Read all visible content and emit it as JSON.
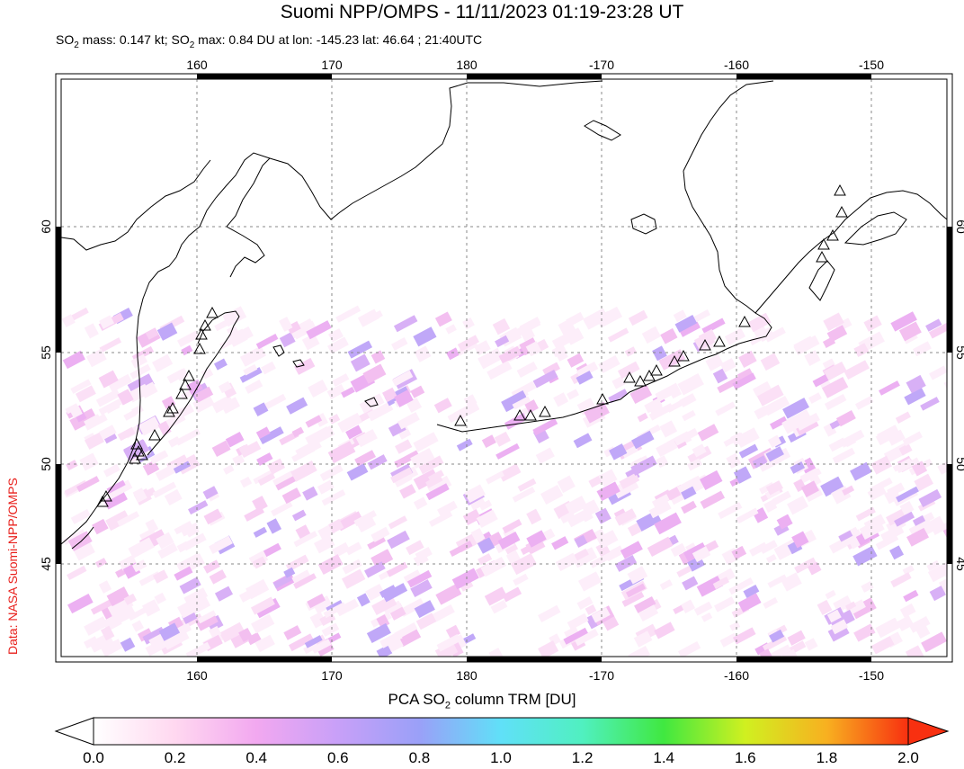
{
  "header": {
    "title": "Suomi NPP/OMPS - 11/11/2023 01:19-23:28 UT",
    "subtitle_a": "SO",
    "subtitle_b": " mass: 0.147 kt; SO",
    "subtitle_c": " max: 0.84 DU at lon: -145.23 lat: 46.64 ; 21:40UTC",
    "sub2": "2"
  },
  "credit": "Data: NASA Suomi-NPP/OMPS",
  "map": {
    "lon_ticks": [
      "160",
      "170",
      "180",
      "-170",
      "-160",
      "-150"
    ],
    "lat_ticks": [
      "60",
      "55",
      "50",
      "45"
    ],
    "volcano_marker": "triangle-icon"
  },
  "colorbar": {
    "title_a": "PCA SO",
    "title_b": " column TRM [DU]",
    "sub2": "2",
    "ticks": [
      "0.0",
      "0.2",
      "0.4",
      "0.6",
      "0.8",
      "1.0",
      "1.2",
      "1.4",
      "1.6",
      "1.8",
      "2.0"
    ],
    "colors": [
      "#ffffff",
      "#ffd8f0",
      "#f2a8f0",
      "#c8a0f8",
      "#9aa0f8",
      "#60e0f8",
      "#50f0c0",
      "#40e840",
      "#d0f020",
      "#f8b020",
      "#f83010"
    ]
  }
}
